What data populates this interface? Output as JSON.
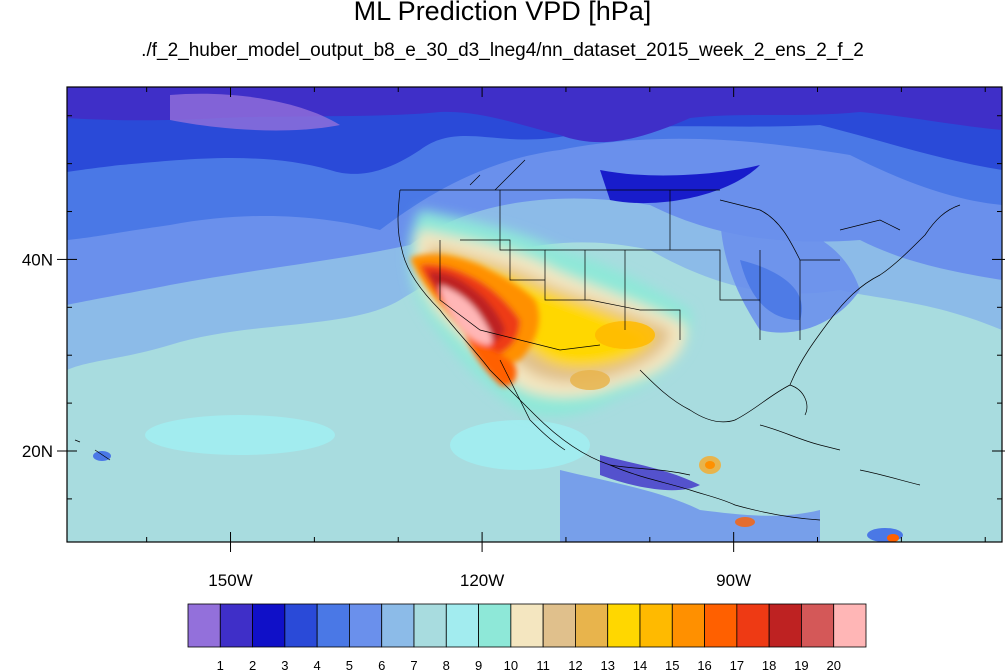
{
  "title": "ML Prediction VPD [hPa]",
  "subtitle": "./f_2_huber_model_output_b8_e_30_d3_lneg4/nn_dataset_2015_week_2_ens_2_f_2",
  "map": {
    "lon_range": [
      -169.5,
      -58
    ],
    "lat_range": [
      10.5,
      58
    ],
    "x_ticks": [
      {
        "lon": -150,
        "label": "150W"
      },
      {
        "lon": -120,
        "label": "120W"
      },
      {
        "lon": -90,
        "label": "90W"
      }
    ],
    "y_ticks": [
      {
        "lat": 40,
        "label": "40N"
      },
      {
        "lat": 20,
        "label": "20N"
      }
    ]
  },
  "colorbar": {
    "labels": [
      "1",
      "2",
      "3",
      "4",
      "5",
      "6",
      "7",
      "8",
      "9",
      "10",
      "11",
      "12",
      "13",
      "14",
      "15",
      "16",
      "17",
      "18",
      "19",
      "20"
    ],
    "colors": [
      "#9370db",
      "#3f2fc8",
      "#1010c8",
      "#2a4ad8",
      "#4a78e6",
      "#6a90ec",
      "#8cbbe8",
      "#a8dcdf",
      "#a2ecef",
      "#8ee8d8",
      "#f4e6c0",
      "#e0c08c",
      "#e8b44c",
      "#ffd700",
      "#ffba00",
      "#ff9000",
      "#ff6000",
      "#ee3a14",
      "#be2222",
      "#d45858",
      "#ffb6b6"
    ]
  }
}
